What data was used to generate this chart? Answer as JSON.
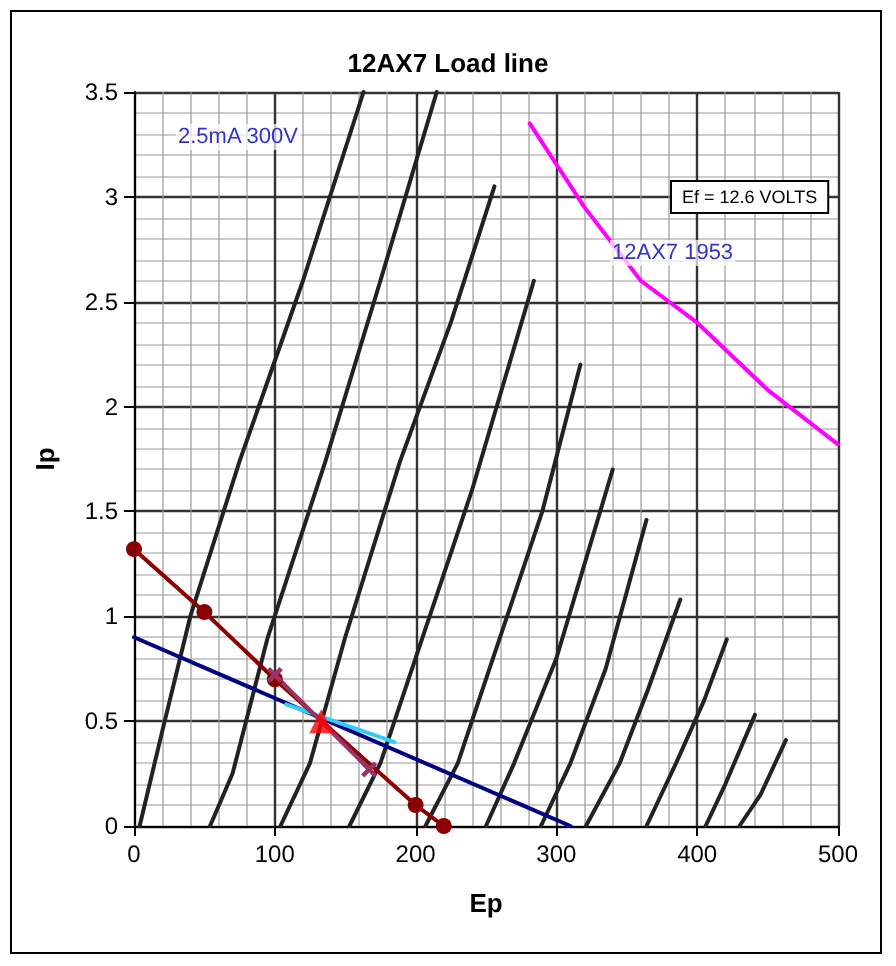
{
  "chart_data": {
    "type": "line",
    "title": "12AX7 Load line",
    "xlabel": "Ep",
    "ylabel": "Ip",
    "xlim": [
      0,
      500
    ],
    "xticks": [
      0,
      100,
      200,
      300,
      400,
      500
    ],
    "ylim": [
      0,
      3.5
    ],
    "yticks": [
      0,
      0.5,
      1,
      1.5,
      2,
      2.5,
      3,
      3.5
    ],
    "grid": true,
    "annotations": [
      "2.5mA 300V",
      "Ef = 12.6 VOLTS",
      "12AX7 1953"
    ],
    "series": [
      {
        "color": "#222222",
        "marker": "none",
        "x": [
          4,
          20,
          40,
          75,
          120,
          163
        ],
        "values": [
          0,
          0.45,
          1.0,
          1.74,
          2.6,
          3.5
        ]
      },
      {
        "color": "#222222",
        "marker": "none",
        "x": [
          54,
          70,
          95,
          136,
          175,
          215
        ],
        "values": [
          0,
          0.25,
          0.9,
          1.74,
          2.6,
          3.5
        ]
      },
      {
        "color": "#222222",
        "marker": "none",
        "x": [
          104,
          125,
          150,
          189,
          225,
          256
        ],
        "values": [
          0,
          0.3,
          0.9,
          1.74,
          2.4,
          3.05
        ]
      },
      {
        "color": "#222222",
        "marker": "none",
        "x": [
          153,
          175,
          200,
          240,
          284
        ],
        "values": [
          0,
          0.3,
          0.8,
          1.6,
          2.6
        ]
      },
      {
        "color": "#222222",
        "marker": "none",
        "x": [
          207,
          230,
          255,
          290,
          317
        ],
        "values": [
          0,
          0.3,
          0.8,
          1.5,
          2.2
        ]
      },
      {
        "color": "#222222",
        "marker": "none",
        "x": [
          250,
          270,
          300,
          340
        ],
        "values": [
          0,
          0.3,
          0.8,
          1.7
        ]
      },
      {
        "color": "#222222",
        "marker": "none",
        "x": [
          289,
          310,
          335,
          364
        ],
        "values": [
          0,
          0.3,
          0.75,
          1.46
        ]
      },
      {
        "color": "#222222",
        "marker": "none",
        "x": [
          321,
          345,
          365,
          388
        ],
        "values": [
          0,
          0.3,
          0.65,
          1.08
        ]
      },
      {
        "color": "#222222",
        "marker": "none",
        "x": [
          364,
          385,
          405,
          421
        ],
        "values": [
          0,
          0.3,
          0.6,
          0.89
        ]
      },
      {
        "color": "#222222",
        "marker": "none",
        "x": [
          406,
          420,
          441
        ],
        "values": [
          0,
          0.2,
          0.53
        ]
      },
      {
        "color": "#222222",
        "marker": "none",
        "x": [
          430,
          445,
          463
        ],
        "values": [
          0,
          0.15,
          0.41
        ]
      },
      {
        "color": "#ff00ff",
        "marker": "none",
        "x": [
          281,
          320,
          360,
          400,
          450,
          500
        ],
        "values": [
          3.35,
          2.95,
          2.6,
          2.4,
          2.08,
          1.82
        ]
      },
      {
        "color": "#000080",
        "marker": "none",
        "x": [
          0,
          310
        ],
        "values": [
          0.9,
          0
        ]
      },
      {
        "color": "#33ccff",
        "marker": "none",
        "x": [
          108,
          185
        ],
        "values": [
          0.58,
          0.4
        ]
      },
      {
        "color": "#8b0000",
        "marker": "circle",
        "x": [
          0,
          50,
          100,
          200,
          220
        ],
        "values": [
          1.32,
          1.02,
          0.7,
          0.1,
          0
        ]
      },
      {
        "color": "#993366",
        "marker": "cross",
        "x": [
          100,
          167
        ],
        "values": [
          0.72,
          0.27
        ]
      },
      {
        "type": "scatter",
        "color": "#ff0000",
        "marker": "triangle",
        "x": [
          133
        ],
        "values": [
          0.5
        ]
      }
    ]
  }
}
